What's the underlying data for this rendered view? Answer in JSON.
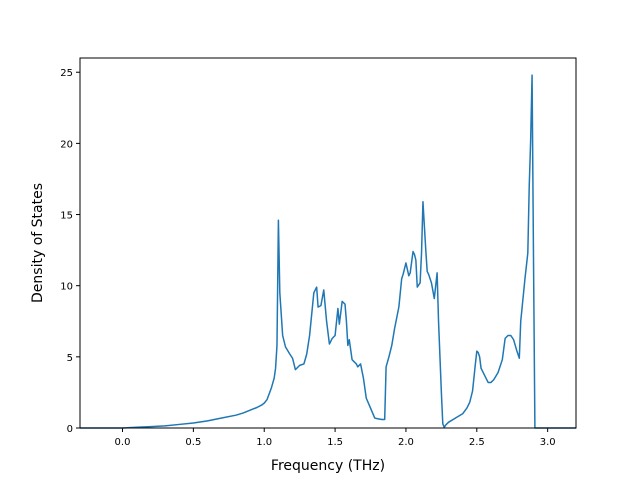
{
  "chart_data": {
    "type": "line",
    "title": "",
    "xlabel": "Frequency (THz)",
    "ylabel": "Density of States",
    "xlim": [
      -0.3,
      3.2
    ],
    "ylim": [
      0,
      26
    ],
    "xticks": [
      0.0,
      0.5,
      1.0,
      1.5,
      2.0,
      2.5,
      3.0
    ],
    "xtick_labels": [
      "0.0",
      "0.5",
      "1.0",
      "1.5",
      "2.0",
      "2.5",
      "3.0"
    ],
    "yticks": [
      0,
      5,
      10,
      15,
      20,
      25
    ],
    "ytick_labels": [
      "0",
      "5",
      "10",
      "15",
      "20",
      "25"
    ],
    "grid": false,
    "legend": "none",
    "line_color": "#1f77b4",
    "series": [
      {
        "x": [
          -0.3,
          0.0,
          0.1,
          0.2,
          0.3,
          0.4,
          0.5,
          0.6,
          0.7,
          0.8,
          0.85,
          0.9,
          0.95,
          0.98,
          1.0,
          1.02,
          1.05,
          1.07,
          1.08,
          1.09,
          1.1,
          1.11,
          1.13,
          1.15,
          1.18,
          1.2,
          1.22,
          1.25,
          1.28,
          1.3,
          1.32,
          1.35,
          1.37,
          1.38,
          1.4,
          1.42,
          1.44,
          1.46,
          1.48,
          1.5,
          1.52,
          1.53,
          1.55,
          1.56,
          1.57,
          1.58,
          1.59,
          1.6,
          1.62,
          1.65,
          1.66,
          1.68,
          1.7,
          1.72,
          1.75,
          1.78,
          1.8,
          1.83,
          1.85,
          1.86,
          1.88,
          1.9,
          1.92,
          1.95,
          1.97,
          1.98,
          2.0,
          2.02,
          2.03,
          2.05,
          2.06,
          2.07,
          2.08,
          2.1,
          2.11,
          2.12,
          2.13,
          2.14,
          2.15,
          2.16,
          2.18,
          2.2,
          2.22,
          2.23,
          2.25,
          2.26,
          2.27,
          2.28,
          2.3,
          2.35,
          2.4,
          2.43,
          2.45,
          2.47,
          2.49,
          2.5,
          2.51,
          2.52,
          2.53,
          2.55,
          2.58,
          2.6,
          2.62,
          2.65,
          2.68,
          2.7,
          2.72,
          2.74,
          2.76,
          2.78,
          2.8,
          2.81,
          2.82,
          2.84,
          2.86,
          2.87,
          2.88,
          2.89,
          2.9,
          2.91,
          2.92,
          3.0,
          3.1,
          3.2
        ],
        "y": [
          0,
          0,
          0.05,
          0.1,
          0.15,
          0.25,
          0.35,
          0.5,
          0.7,
          0.9,
          1.05,
          1.25,
          1.45,
          1.6,
          1.75,
          2.0,
          2.8,
          3.5,
          4.2,
          5.8,
          14.6,
          9.5,
          6.5,
          5.7,
          5.2,
          4.9,
          4.1,
          4.4,
          4.5,
          5.2,
          6.5,
          9.5,
          9.9,
          8.5,
          8.6,
          9.7,
          7.5,
          5.9,
          6.3,
          6.5,
          8.4,
          7.3,
          8.9,
          8.8,
          8.7,
          7.5,
          5.8,
          6.2,
          4.8,
          4.5,
          4.3,
          4.5,
          3.5,
          2.1,
          1.4,
          0.7,
          0.65,
          0.6,
          0.6,
          4.3,
          5.0,
          5.8,
          7.0,
          8.5,
          10.5,
          10.8,
          11.6,
          10.7,
          10.9,
          12.4,
          12.2,
          11.8,
          9.9,
          10.2,
          12.3,
          15.9,
          14.2,
          12.5,
          11.0,
          10.8,
          10.2,
          9.1,
          10.9,
          7.5,
          2.5,
          0.3,
          0.05,
          0.2,
          0.4,
          0.7,
          1.0,
          1.4,
          1.8,
          2.6,
          4.5,
          5.4,
          5.3,
          5.0,
          4.2,
          3.8,
          3.2,
          3.2,
          3.4,
          3.9,
          4.8,
          6.3,
          6.5,
          6.5,
          6.2,
          5.5,
          4.9,
          7.5,
          8.5,
          10.5,
          12.3,
          17.0,
          20.2,
          24.8,
          12.0,
          0,
          0,
          0,
          0,
          0
        ]
      }
    ]
  }
}
